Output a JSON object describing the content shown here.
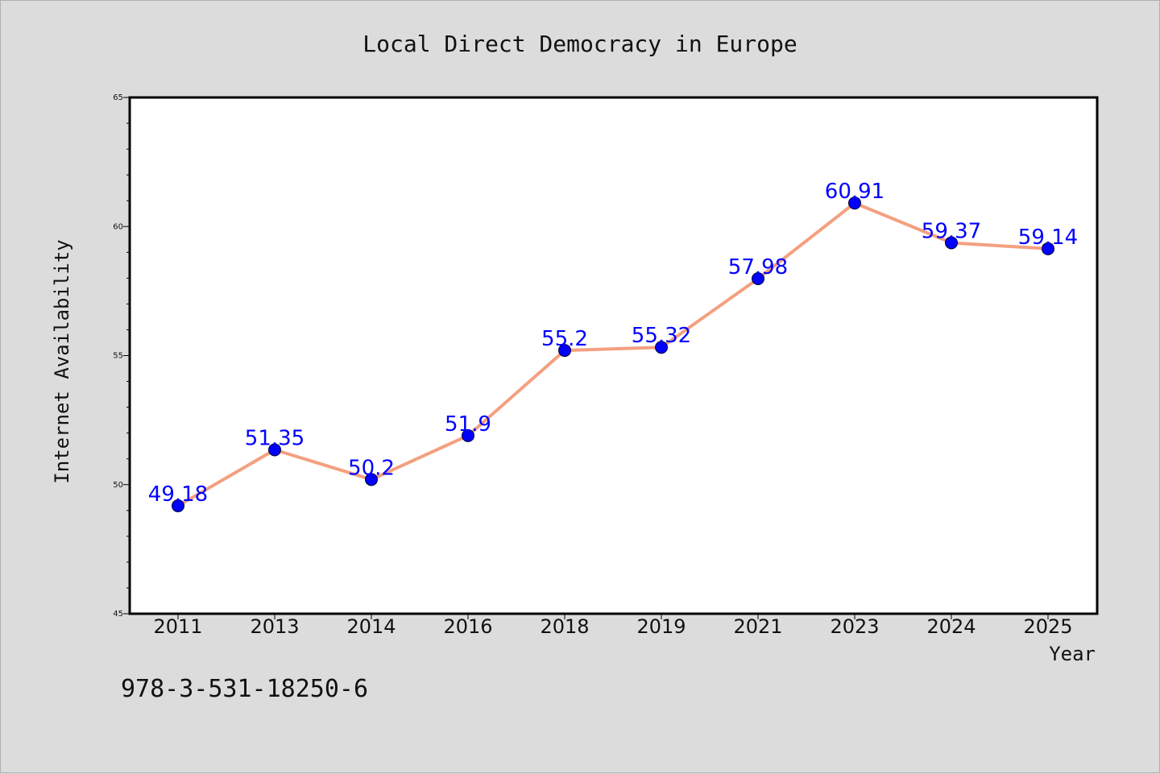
{
  "chart_data": {
    "type": "line",
    "title": "Local Direct Democracy in Europe",
    "xlabel": "Year",
    "ylabel": "Internet Availability",
    "categories": [
      "2011",
      "2013",
      "2014",
      "2016",
      "2018",
      "2019",
      "2021",
      "2023",
      "2024",
      "2025"
    ],
    "series": [
      {
        "values": [
          49.18,
          51.35,
          50.2,
          51.9,
          55.2,
          55.32,
          57.98,
          60.91,
          59.37,
          59.14
        ],
        "labels": [
          "49.18",
          "51.35",
          "50.2",
          "51.9",
          "55.2",
          "55.32",
          "57.98",
          "60.91",
          "59.37",
          "59.14"
        ],
        "line_color": "#f4a07f",
        "marker_color": "#0000ff"
      }
    ],
    "ylim": [
      45,
      65
    ],
    "yticks": [
      45,
      50,
      55,
      60,
      65
    ],
    "ytick_labels": [
      "45",
      "50",
      "55",
      "60",
      "65"
    ],
    "grid": false,
    "legend": "none"
  },
  "footnote": "978-3-531-18250-6",
  "colors": {
    "background": "#dcdcdc",
    "plot_background": "#ffffff",
    "line": "#f4a07f",
    "marker": "#0000ff",
    "data_label": "#0000ff"
  }
}
